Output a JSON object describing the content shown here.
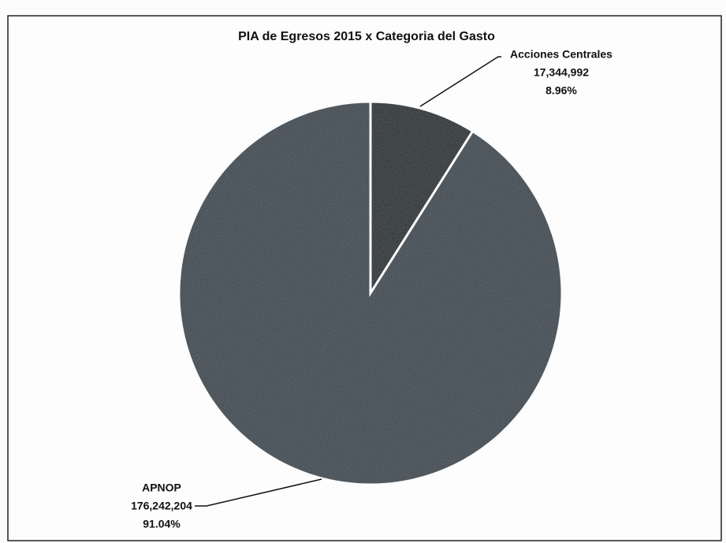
{
  "chart_data": {
    "type": "pie",
    "title": "PIA de Egresos 2015 x Categoria del Gasto",
    "categories": [
      "Acciones Centrales",
      "APNOP"
    ],
    "values": [
      17344992,
      176242204
    ],
    "value_labels": [
      "17,344,992",
      "176,242,204"
    ],
    "percentages": [
      8.96,
      91.04
    ],
    "percentage_labels": [
      "8.96%",
      "91.04%"
    ],
    "colors": [
      "#0e1419",
      "#313c44"
    ]
  }
}
